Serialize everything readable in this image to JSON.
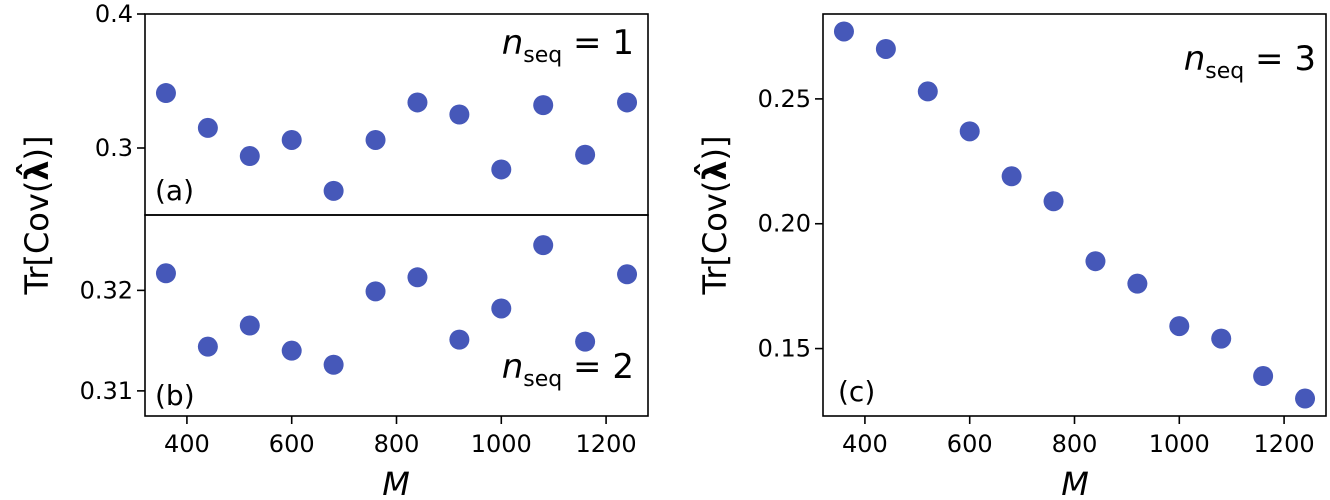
{
  "figure": {
    "marker_color": "#4658b9",
    "background": "#ffffff"
  },
  "chart_data": [
    {
      "id": "a",
      "type": "scatter",
      "panel_label": "(a)",
      "annotation": {
        "base": "n",
        "sub": "seq",
        "rest": " = 1"
      },
      "ylabel": {
        "prefix": "Tr[Cov(",
        "symbol": "λ̂",
        "suffix": ")]"
      },
      "xlabel": "",
      "x": [
        360,
        440,
        520,
        600,
        680,
        760,
        840,
        920,
        1000,
        1080,
        1160,
        1240
      ],
      "y": [
        0.341,
        0.315,
        0.294,
        0.306,
        0.268,
        0.306,
        0.334,
        0.325,
        0.284,
        0.332,
        0.295,
        0.334
      ],
      "xlim": [
        320,
        1280
      ],
      "ylim": [
        0.25,
        0.4
      ],
      "yticks": [
        {
          "v": 0.3,
          "label": "0.3"
        },
        {
          "v": 0.4,
          "label": "0.4"
        }
      ],
      "xticks": []
    },
    {
      "id": "b",
      "type": "scatter",
      "panel_label": "(b)",
      "annotation": {
        "base": "n",
        "sub": "seq",
        "rest": " = 2"
      },
      "ylabel": {
        "prefix": "Tr[Cov(",
        "symbol": "λ̂",
        "suffix": ")]"
      },
      "xlabel": "M",
      "x": [
        360,
        440,
        520,
        600,
        680,
        760,
        840,
        920,
        1000,
        1080,
        1160,
        1240
      ],
      "y": [
        0.3217,
        0.3144,
        0.3165,
        0.314,
        0.3126,
        0.3199,
        0.3213,
        0.3151,
        0.3182,
        0.3245,
        0.3149,
        0.3216
      ],
      "xlim": [
        320,
        1280
      ],
      "ylim": [
        0.3075,
        0.3275
      ],
      "yticks": [
        {
          "v": 0.31,
          "label": "0.31"
        },
        {
          "v": 0.32,
          "label": "0.32"
        }
      ],
      "xticks": [
        {
          "v": 400,
          "label": "400"
        },
        {
          "v": 600,
          "label": "600"
        },
        {
          "v": 800,
          "label": "800"
        },
        {
          "v": 1000,
          "label": "1000"
        },
        {
          "v": 1200,
          "label": "1200"
        }
      ]
    },
    {
      "id": "c",
      "type": "scatter",
      "panel_label": "(c)",
      "annotation": {
        "base": "n",
        "sub": "seq",
        "rest": " = 3"
      },
      "ylabel": {
        "prefix": "Tr[Cov(",
        "symbol": "λ̂",
        "suffix": ")]"
      },
      "xlabel": "M",
      "x": [
        360,
        440,
        520,
        600,
        680,
        760,
        840,
        920,
        1000,
        1080,
        1160,
        1240
      ],
      "y": [
        0.277,
        0.27,
        0.253,
        0.237,
        0.219,
        0.209,
        0.185,
        0.176,
        0.159,
        0.154,
        0.139,
        0.13
      ],
      "xlim": [
        320,
        1280
      ],
      "ylim": [
        0.123,
        0.284
      ],
      "yticks": [
        {
          "v": 0.15,
          "label": "0.15"
        },
        {
          "v": 0.2,
          "label": "0.20"
        },
        {
          "v": 0.25,
          "label": "0.25"
        }
      ],
      "xticks": [
        {
          "v": 400,
          "label": "400"
        },
        {
          "v": 600,
          "label": "600"
        },
        {
          "v": 800,
          "label": "800"
        },
        {
          "v": 1000,
          "label": "1000"
        },
        {
          "v": 1200,
          "label": "1200"
        }
      ]
    }
  ]
}
